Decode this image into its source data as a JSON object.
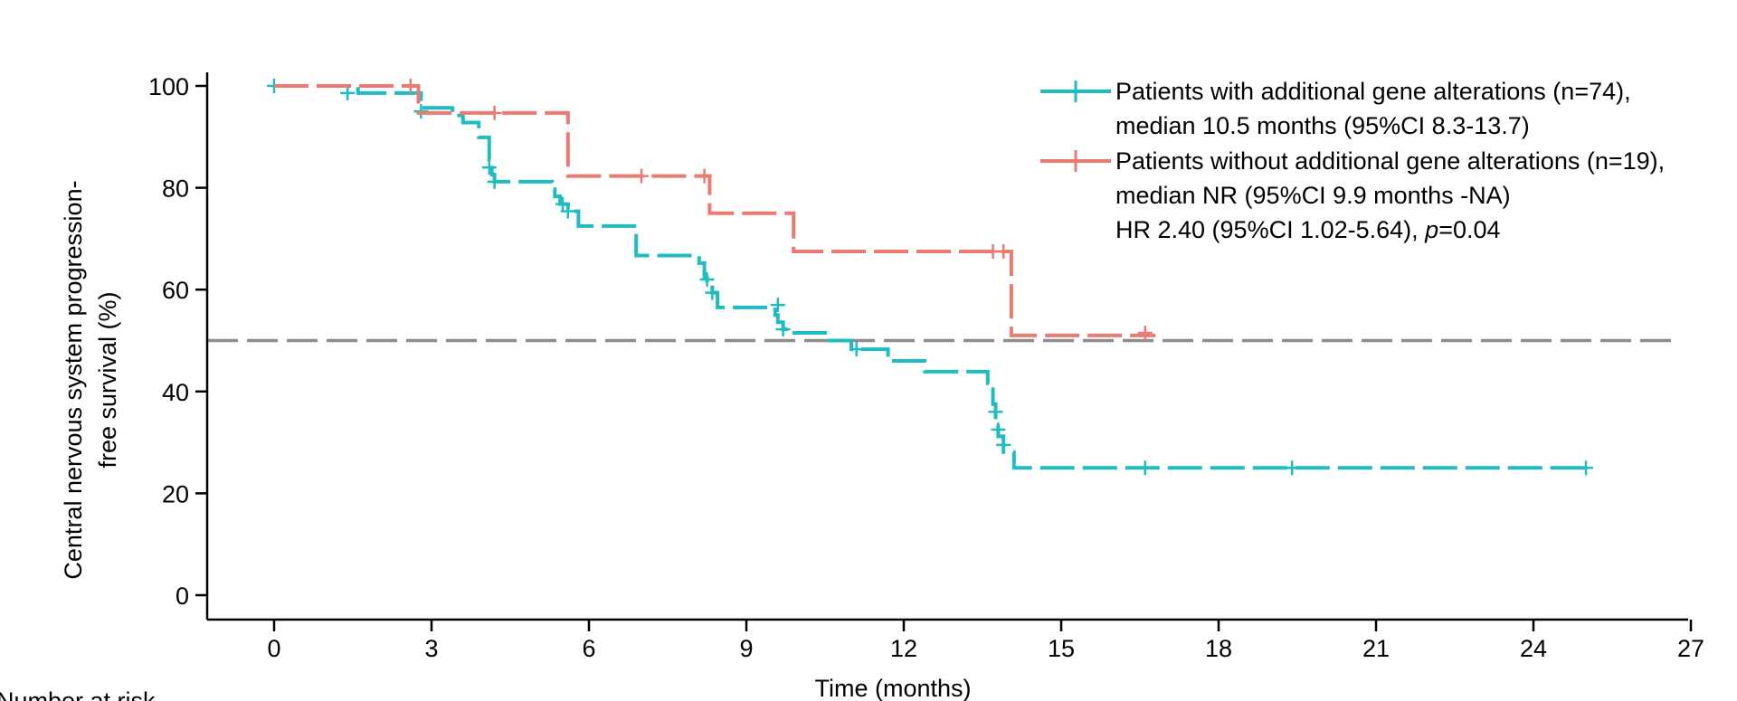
{
  "chart_data": {
    "type": "line",
    "subtype": "kaplan-meier",
    "ylabel_lines": [
      "Central nervous system progression-",
      "free survival (%)"
    ],
    "xlabel": "Time (months)",
    "xlim": [
      -1.3,
      27
    ],
    "ylim": [
      0,
      100
    ],
    "x_ticks": [
      0,
      3,
      6,
      9,
      12,
      15,
      18,
      21,
      24,
      27
    ],
    "y_ticks": [
      0,
      20,
      40,
      60,
      80,
      100
    ],
    "reference_line": {
      "y": 50,
      "style": "dashed",
      "color": "#8c8c8c"
    },
    "legend_position": "top-right",
    "colors": {
      "teal": "#1fbcc1",
      "salmon": "#eb7b72",
      "reference": "#8c8c8c"
    },
    "series": [
      {
        "name": "with",
        "color": "#1fbcc1",
        "legend_lines": [
          "Patients with additional gene alterations (n=74),",
          "median 10.5 months (95%CI 8.3-13.7)"
        ],
        "steps": [
          [
            0,
            100
          ],
          [
            1.6,
            98.6
          ],
          [
            2.8,
            95.7
          ],
          [
            3.4,
            94.2
          ],
          [
            3.6,
            92.8
          ],
          [
            3.9,
            89.9
          ],
          [
            4.1,
            85.5
          ],
          [
            4.15,
            82.6
          ],
          [
            4.2,
            81.2
          ],
          [
            5.3,
            79.7
          ],
          [
            5.35,
            78.3
          ],
          [
            5.45,
            76.8
          ],
          [
            5.6,
            75.4
          ],
          [
            5.8,
            72.5
          ],
          [
            6.9,
            66.7
          ],
          [
            8.1,
            65.2
          ],
          [
            8.2,
            62.3
          ],
          [
            8.25,
            60.9
          ],
          [
            8.35,
            59.4
          ],
          [
            8.45,
            56.5
          ],
          [
            9.55,
            55.0
          ],
          [
            9.6,
            53.6
          ],
          [
            9.7,
            52.2
          ],
          [
            9.8,
            51.5
          ],
          [
            10.5,
            50.0
          ],
          [
            11.0,
            48.3
          ],
          [
            11.7,
            46.0
          ],
          [
            12.4,
            43.9
          ],
          [
            13.6,
            41.6
          ],
          [
            13.7,
            37.5
          ],
          [
            13.75,
            34.4
          ],
          [
            13.8,
            31.2
          ],
          [
            13.9,
            28.1
          ],
          [
            14.1,
            25.0
          ],
          [
            25.0,
            25.0
          ]
        ],
        "censors": [
          [
            0,
            100
          ],
          [
            1.4,
            98.6
          ],
          [
            2.8,
            95.0
          ],
          [
            4.1,
            84.0
          ],
          [
            4.2,
            81.2
          ],
          [
            5.5,
            76.8
          ],
          [
            5.6,
            75.4
          ],
          [
            8.25,
            62.0
          ],
          [
            8.35,
            59.4
          ],
          [
            9.6,
            57.0
          ],
          [
            9.7,
            52.2
          ],
          [
            11.1,
            48.3
          ],
          [
            13.75,
            36.0
          ],
          [
            13.8,
            32.5
          ],
          [
            13.9,
            29.5
          ],
          [
            16.6,
            25.0
          ],
          [
            19.4,
            25.0
          ],
          [
            25.0,
            25.0
          ]
        ]
      },
      {
        "name": "without",
        "color": "#eb7b72",
        "legend_lines": [
          "Patients without additional gene alterations (n=19),",
          "median NR (95%CI 9.9 months -NA)"
        ],
        "steps": [
          [
            0,
            100
          ],
          [
            2.75,
            94.7
          ],
          [
            5.6,
            82.3
          ],
          [
            8.3,
            75.0
          ],
          [
            9.9,
            67.5
          ],
          [
            14.05,
            51.0
          ],
          [
            16.8,
            51.0
          ]
        ],
        "censors": [
          [
            2.6,
            100
          ],
          [
            4.2,
            94.7
          ],
          [
            7.0,
            82.3
          ],
          [
            8.2,
            82.3
          ],
          [
            13.7,
            67.5
          ],
          [
            13.9,
            67.5
          ],
          [
            16.6,
            51.5
          ]
        ]
      }
    ],
    "annotation": {
      "prefix": "HR 2.40 (95%CI 1.02-5.64), ",
      "italic": "p",
      "suffix": "=0.04"
    },
    "number_at_risk_title": "Number at risk"
  }
}
